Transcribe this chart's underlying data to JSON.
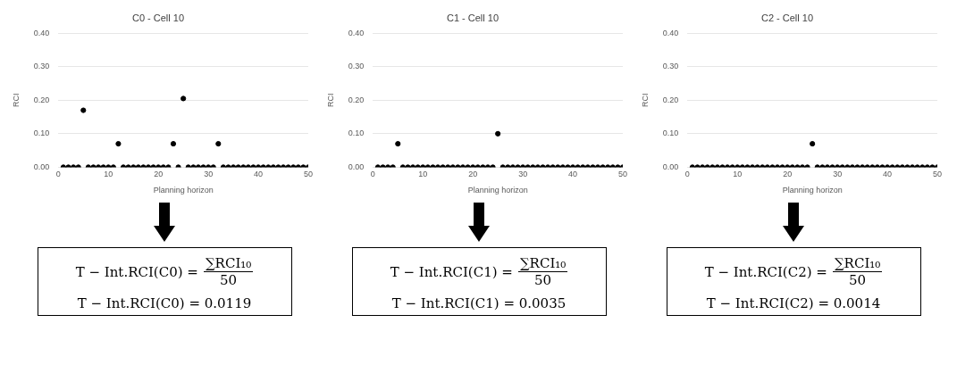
{
  "chart_data": [
    {
      "type": "scatter",
      "title": "C0 - Cell 10",
      "xlabel": "Planning horizon",
      "ylabel": "RCI",
      "x": [
        1,
        2,
        3,
        4,
        5,
        6,
        7,
        8,
        9,
        10,
        11,
        12,
        13,
        14,
        15,
        16,
        17,
        18,
        19,
        20,
        21,
        22,
        23,
        24,
        25,
        26,
        27,
        28,
        29,
        30,
        31,
        32,
        33,
        34,
        35,
        36,
        37,
        38,
        39,
        40,
        41,
        42,
        43,
        44,
        45,
        46,
        47,
        48,
        49,
        50
      ],
      "values": [
        0,
        0,
        0,
        0,
        0.17,
        0,
        0,
        0,
        0,
        0,
        0,
        0.07,
        0,
        0,
        0,
        0,
        0,
        0,
        0,
        0,
        0,
        0,
        0.07,
        0,
        0.205,
        0,
        0,
        0,
        0,
        0,
        0,
        0.07,
        0,
        0,
        0,
        0,
        0,
        0,
        0,
        0,
        0,
        0,
        0,
        0,
        0,
        0,
        0,
        0,
        0,
        0
      ],
      "color": "#000000",
      "marker": "circle",
      "xlim": [
        0,
        50
      ],
      "xticks": [
        0,
        10,
        20,
        30,
        40,
        50
      ],
      "ylim": [
        0,
        0.4
      ],
      "yticks": [
        {
          "value": 0,
          "label": "0.00"
        },
        {
          "value": 0.1,
          "label": "0.10"
        },
        {
          "value": 0.2,
          "label": "0.20"
        },
        {
          "value": 0.3,
          "label": "0.30"
        },
        {
          "value": 0.4,
          "label": "0.40"
        }
      ],
      "grid": "y",
      "annotations": [
        "T − Int.RCI(C0) =",
        "∑RCI₁₀",
        "50",
        "T − Int.RCI(C0) = 0.0119"
      ]
    },
    {
      "type": "scatter",
      "title": "C1 - Cell 10",
      "xlabel": "Planning horizon",
      "ylabel": "RCI",
      "x": [
        1,
        2,
        3,
        4,
        5,
        6,
        7,
        8,
        9,
        10,
        11,
        12,
        13,
        14,
        15,
        16,
        17,
        18,
        19,
        20,
        21,
        22,
        23,
        24,
        25,
        26,
        27,
        28,
        29,
        30,
        31,
        32,
        33,
        34,
        35,
        36,
        37,
        38,
        39,
        40,
        41,
        42,
        43,
        44,
        45,
        46,
        47,
        48,
        49,
        50
      ],
      "values": [
        0,
        0,
        0,
        0,
        0.07,
        0,
        0,
        0,
        0,
        0,
        0,
        0,
        0,
        0,
        0,
        0,
        0,
        0,
        0,
        0,
        0,
        0,
        0,
        0,
        0.1,
        0,
        0,
        0,
        0,
        0,
        0,
        0,
        0,
        0,
        0,
        0,
        0,
        0,
        0,
        0,
        0,
        0,
        0,
        0,
        0,
        0,
        0,
        0,
        0,
        0
      ],
      "color": "#000000",
      "marker": "circle",
      "xlim": [
        0,
        50
      ],
      "xticks": [
        0,
        10,
        20,
        30,
        40,
        50
      ],
      "ylim": [
        0,
        0.4
      ],
      "yticks": [
        {
          "value": 0,
          "label": "0.00"
        },
        {
          "value": 0.1,
          "label": "0.10"
        },
        {
          "value": 0.2,
          "label": "0.20"
        },
        {
          "value": 0.3,
          "label": "0.30"
        },
        {
          "value": 0.4,
          "label": "0.40"
        }
      ],
      "grid": "y",
      "annotations": [
        "T − Int.RCI(C1) =",
        "∑RCI₁₀",
        "50",
        "T − Int.RCI(C1) = 0.0035"
      ]
    },
    {
      "type": "scatter",
      "title": "C2 - Cell 10",
      "xlabel": "Planning horizon",
      "ylabel": "RCI",
      "x": [
        1,
        2,
        3,
        4,
        5,
        6,
        7,
        8,
        9,
        10,
        11,
        12,
        13,
        14,
        15,
        16,
        17,
        18,
        19,
        20,
        21,
        22,
        23,
        24,
        25,
        26,
        27,
        28,
        29,
        30,
        31,
        32,
        33,
        34,
        35,
        36,
        37,
        38,
        39,
        40,
        41,
        42,
        43,
        44,
        45,
        46,
        47,
        48,
        49,
        50
      ],
      "values": [
        0,
        0,
        0,
        0,
        0,
        0,
        0,
        0,
        0,
        0,
        0,
        0,
        0,
        0,
        0,
        0,
        0,
        0,
        0,
        0,
        0,
        0,
        0,
        0,
        0.07,
        0,
        0,
        0,
        0,
        0,
        0,
        0,
        0,
        0,
        0,
        0,
        0,
        0,
        0,
        0,
        0,
        0,
        0,
        0,
        0,
        0,
        0,
        0,
        0,
        0
      ],
      "color": "#000000",
      "marker": "circle",
      "xlim": [
        0,
        50
      ],
      "xticks": [
        0,
        10,
        20,
        30,
        40,
        50
      ],
      "ylim": [
        0,
        0.4
      ],
      "yticks": [
        {
          "value": 0,
          "label": "0.00"
        },
        {
          "value": 0.1,
          "label": "0.10"
        },
        {
          "value": 0.2,
          "label": "0.20"
        },
        {
          "value": 0.3,
          "label": "0.30"
        },
        {
          "value": 0.4,
          "label": "0.40"
        }
      ],
      "grid": "y",
      "annotations": [
        "T − Int.RCI(C2) =",
        "∑RCI₁₀",
        "50",
        "T − Int.RCI(C2) = 0.0014"
      ]
    }
  ]
}
